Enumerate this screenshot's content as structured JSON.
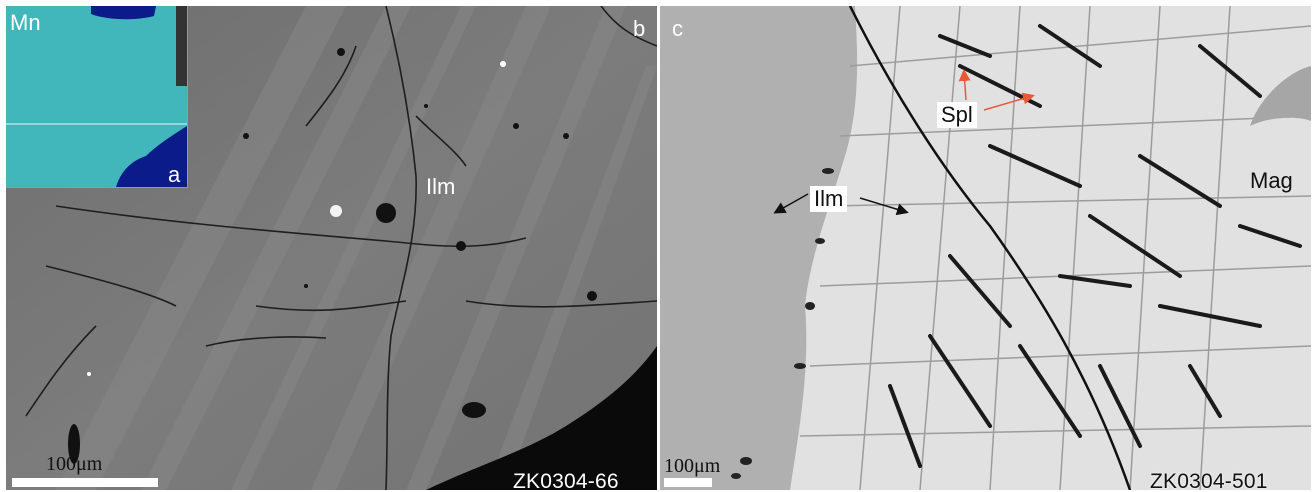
{
  "panels": {
    "b": {
      "letter": "b",
      "mineral_label": "Ilm",
      "scale_text": "100μm",
      "sample_code": "ZK0304-66",
      "background_color": "#7a7a7a"
    },
    "a_inset": {
      "letter": "a",
      "element_label": "Mn",
      "background_color": "#3bb3c4"
    },
    "c": {
      "letter": "c",
      "spl_label": "Spl",
      "ilm_label": "Ilm",
      "mag_label": "Mag",
      "scale_text": "100μm",
      "sample_code": "ZK0304-501",
      "arrow_color_red": "#e8593a",
      "arrow_color_black": "#111111",
      "background_color": "#b6b6b6"
    }
  }
}
